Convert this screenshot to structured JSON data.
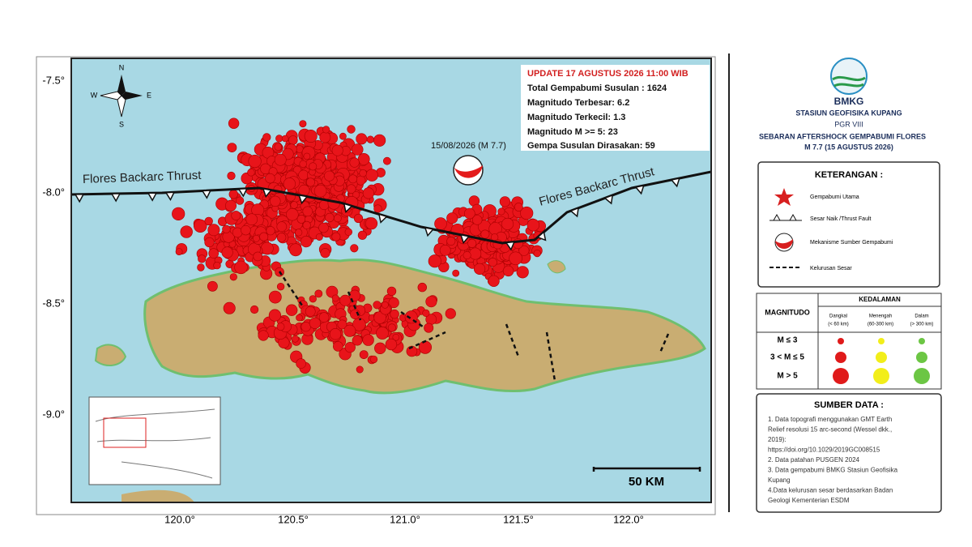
{
  "map": {
    "lat_labels": [
      "-7.5°",
      "-8.0°",
      "-8.5°",
      "-9.0°"
    ],
    "lon_labels": [
      "120.0°",
      "120.5°",
      "121.0°",
      "121.5°",
      "122.0°"
    ],
    "compass": {
      "n": "N",
      "s": "S",
      "e": "E",
      "w": "W"
    },
    "info": {
      "update": "UPDATE 17 AGUSTUS 2026 11:00 WIB",
      "lines": [
        "Total Gempabumi Susulan : 1624",
        "Magnitudo Terbesar: 6.2",
        "Magnitudo Terkecil: 1.3",
        "Magnitudo M >= 5: 23",
        "Gempa Susulan Dirasakan: 59"
      ]
    },
    "mainshock_label": "15/08/2026 (M 7.7)",
    "fault_labels": [
      "Flores Backarc Thrust",
      "Flores Backarc Thrust"
    ],
    "scale_label": "50 KM"
  },
  "panel": {
    "agency": "BMKG",
    "station": "STASIUN GEOFISIKA KUPANG",
    "region": "PGR VIII",
    "title": "SEBARAN AFTERSHOCK GEMPABUMI FLORES",
    "subtitle": "M 7.7 (15 AGUSTUS 2026)",
    "legend_title": "KETERANGAN :",
    "legend_items": [
      "Gempabumi Utama",
      "Sesar Naik /Thrust Fault",
      "Mekanisme Sumber Gempabumi",
      "Kelurusan Sesar"
    ],
    "depth": {
      "title": "KEDALAMAN",
      "magnitude_header": "MAGNITUDO",
      "columns": [
        "Dangkal",
        "(< 60 km)",
        "Menengah",
        "(60-300 km)",
        "Dalam",
        "(> 300 km)"
      ],
      "rows": [
        "M ≤ 3",
        "3 < M ≤ 5",
        "M > 5"
      ]
    },
    "sources_title": "SUMBER DATA :",
    "sources": [
      "1. Data topografi menggunakan GMT Earth",
      "Relief resolusi 15 arc-second (Wessel dkk.,",
      "2019):",
      "https://doi.org/10.1029/2019GC008515",
      "2. Data patahan PUSGEN 2024",
      "3. Data gempabumi BMKG Stasiun Geofisika",
      "Kupang",
      "4.Data kelurusan sesar berdasarkan Badan",
      "Geologi Kementerian ESDM"
    ]
  }
}
